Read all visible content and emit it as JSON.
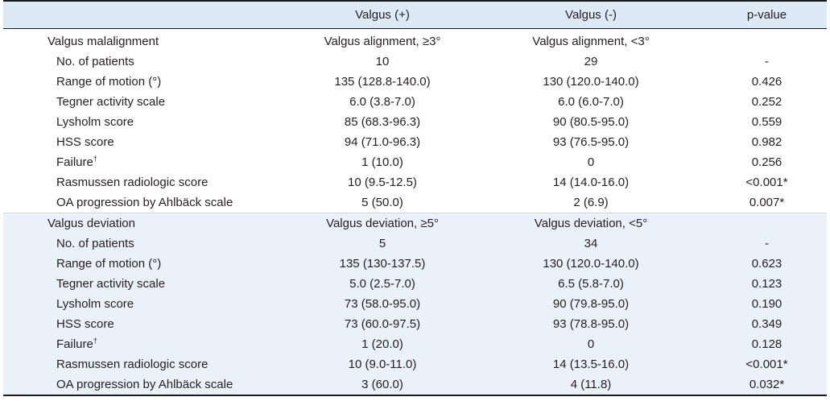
{
  "header": {
    "col0": "",
    "col1": "Valgus (+)",
    "col2": "Valgus (-)",
    "col3": "p-value"
  },
  "sections": [
    {
      "title": "Valgus malalignment",
      "pos_group": "Valgus alignment, ≥3°",
      "neg_group": "Valgus alignment, <3°",
      "rows": [
        {
          "label": "No. of patients",
          "sup": "",
          "pos": "10",
          "neg": "29",
          "p": "-"
        },
        {
          "label": "Range of motion (°)",
          "sup": "",
          "pos": "135 (128.8-140.0)",
          "neg": "130 (120.0-140.0)",
          "p": "0.426"
        },
        {
          "label": "Tegner activity scale",
          "sup": "",
          "pos": "6.0 (3.8-7.0)",
          "neg": "6.0 (6.0-7.0)",
          "p": "0.252"
        },
        {
          "label": "Lysholm score",
          "sup": "",
          "pos": "85 (68.3-96.3)",
          "neg": "90 (80.5-95.0)",
          "p": "0.559"
        },
        {
          "label": "HSS score",
          "sup": "",
          "pos": "94 (71.0-96.3)",
          "neg": "93 (76.5-95.0)",
          "p": "0.982"
        },
        {
          "label": "Failure",
          "sup": "†",
          "pos": "1 (10.0)",
          "neg": "0",
          "p": "0.256"
        },
        {
          "label": "Rasmussen radiologic score",
          "sup": "",
          "pos": "10 (9.5-12.5)",
          "neg": "14 (14.0-16.0)",
          "p": "<0.001*"
        },
        {
          "label": "OA progression by Ahlbäck scale",
          "sup": "",
          "pos": "5 (50.0)",
          "neg": "2 (6.9)",
          "p": "0.007*"
        }
      ]
    },
    {
      "title": "Valgus deviation",
      "pos_group": "Valgus deviation, ≥5°",
      "neg_group": "Valgus deviation, <5°",
      "rows": [
        {
          "label": "No. of patients",
          "sup": "",
          "pos": "5",
          "neg": "34",
          "p": "-"
        },
        {
          "label": "Range of motion (°)",
          "sup": "",
          "pos": "135 (130-137.5)",
          "neg": "130 (120.0-140.0)",
          "p": "0.623"
        },
        {
          "label": "Tegner activity scale",
          "sup": "",
          "pos": "5.0 (2.5-7.0)",
          "neg": "6.5 (5.8-7.0)",
          "p": "0.123"
        },
        {
          "label": "Lysholm score",
          "sup": "",
          "pos": "73 (58.0-95.0)",
          "neg": "90 (79.8-95.0)",
          "p": "0.190"
        },
        {
          "label": "HSS score",
          "sup": "",
          "pos": "73 (60.0-97.5)",
          "neg": "93 (78.8-95.0)",
          "p": "0.349"
        },
        {
          "label": "Failure",
          "sup": "†",
          "pos": "1 (20.0)",
          "neg": "0",
          "p": "0.128"
        },
        {
          "label": "Rasmussen radiologic score",
          "sup": "",
          "pos": "10 (9.0-11.0)",
          "neg": "14 (13.5-16.0)",
          "p": "<0.001*"
        },
        {
          "label": "OA progression by Ahlbäck scale",
          "sup": "",
          "pos": "3 (60.0)",
          "neg": "4 (11.8)",
          "p": "0.032*"
        }
      ]
    }
  ]
}
